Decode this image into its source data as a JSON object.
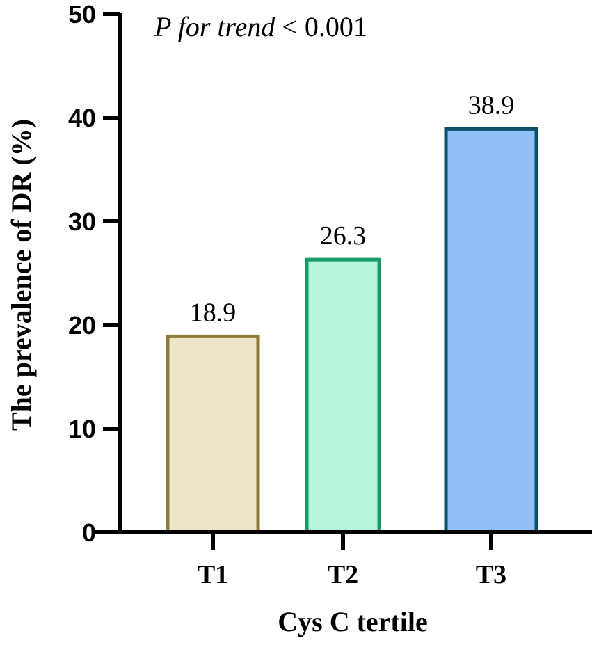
{
  "chart_data": {
    "type": "bar",
    "title": "",
    "categories": [
      "T1",
      "T2",
      "T3"
    ],
    "values": [
      18.9,
      26.3,
      38.9
    ],
    "value_labels": [
      "18.9",
      "26.3",
      "38.9"
    ],
    "xlabel": "Cys C tertile",
    "ylabel": "The prevalence of DR (%)",
    "ylim": [
      0,
      50
    ],
    "yticks": [
      "0",
      "10",
      "20",
      "30",
      "40",
      "50"
    ],
    "grid": false,
    "legend": null,
    "annotation": {
      "italic_part": "P for trend",
      "rest": " < 0.001"
    },
    "colors": {
      "T1": {
        "fill": "#ece5c8",
        "stroke": "#8c7a36"
      },
      "T2": {
        "fill": "#b4f5dc",
        "stroke": "#169a68"
      },
      "T3": {
        "fill": "#91bff8",
        "stroke": "#0c4f66"
      }
    }
  }
}
